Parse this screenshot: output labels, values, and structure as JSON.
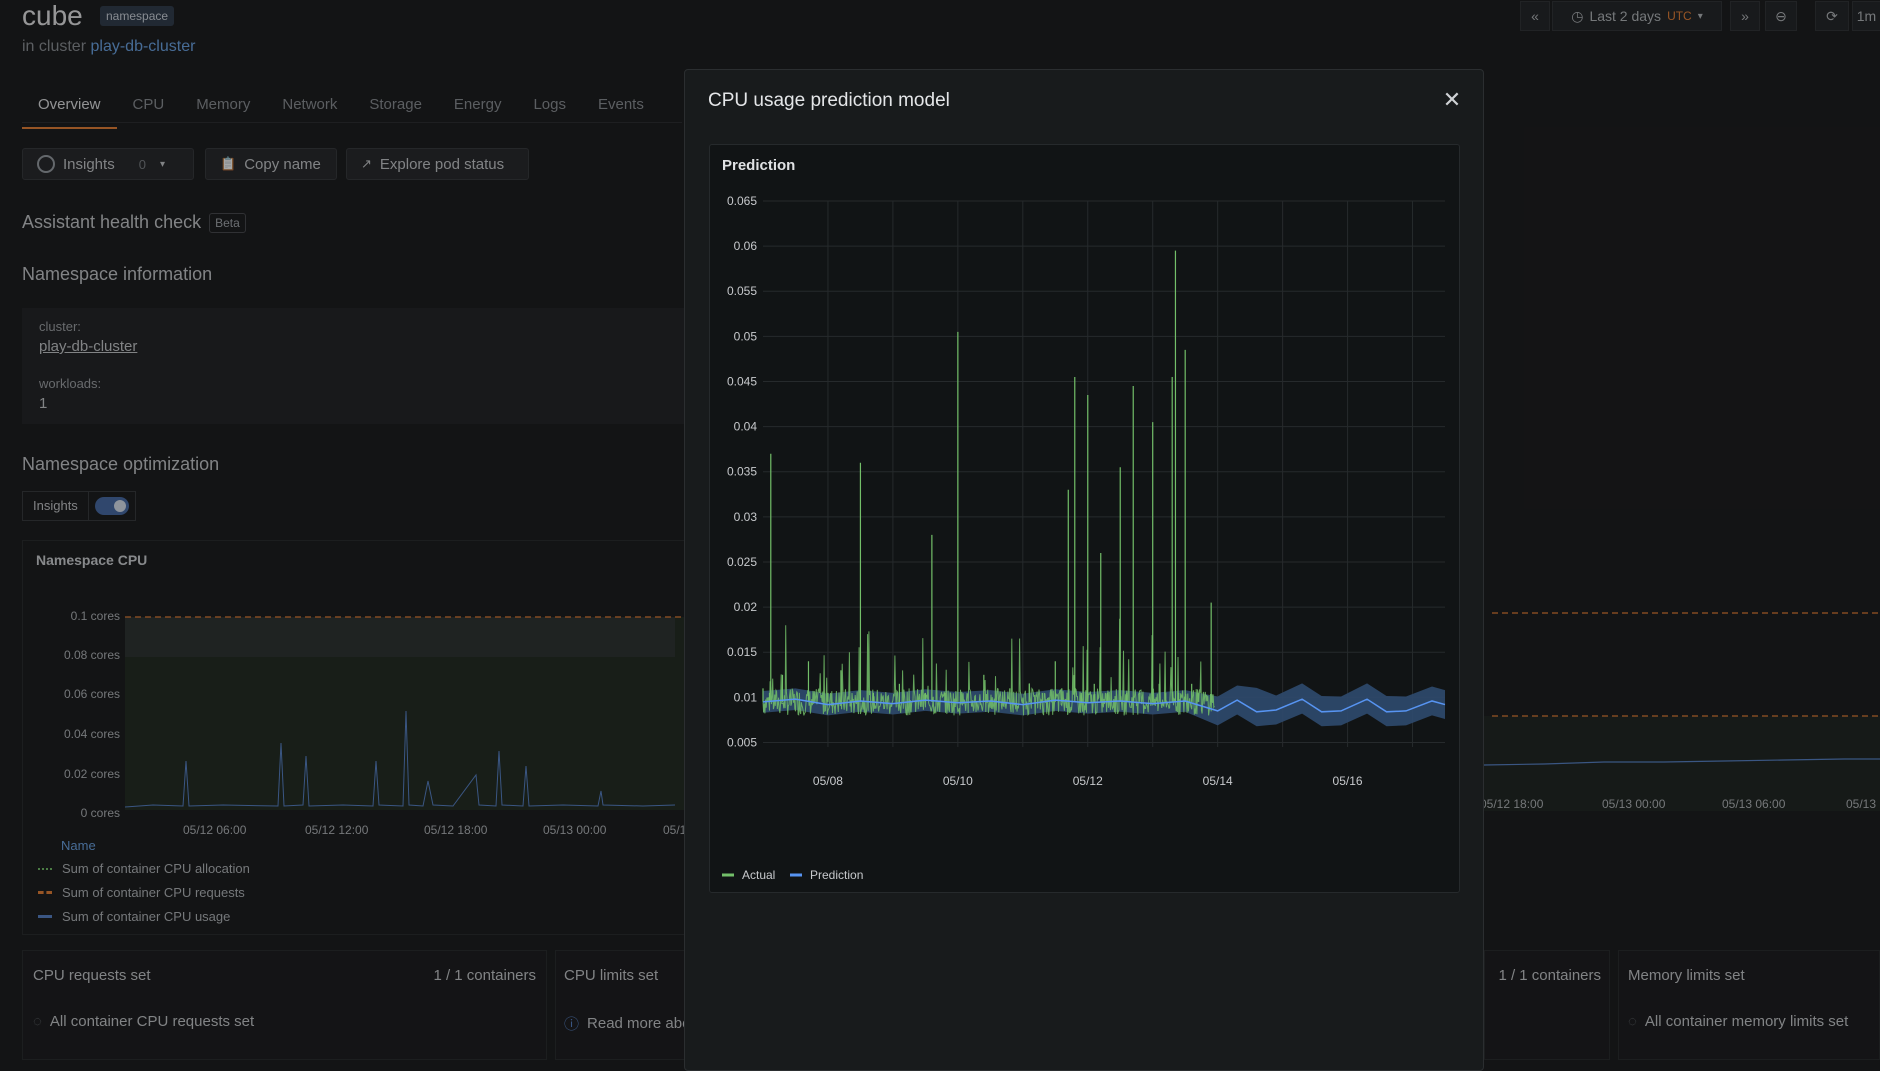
{
  "header": {
    "title": "cube",
    "badge": "namespace",
    "in_cluster_prefix": "in cluster",
    "cluster_link": "play-db-cluster",
    "time_range": "Last 2 days",
    "timezone": "UTC",
    "refresh_partial": "1m"
  },
  "tabs": [
    "Overview",
    "CPU",
    "Memory",
    "Network",
    "Storage",
    "Energy",
    "Logs",
    "Events"
  ],
  "actions": {
    "insights_label": "Insights",
    "insights_count": "0",
    "copy_name": "Copy name",
    "explore_pod": "Explore pod status"
  },
  "health": {
    "title": "Assistant health check",
    "badge": "Beta"
  },
  "ns_info": {
    "title": "Namespace information",
    "cluster_label": "cluster:",
    "cluster_value": "play-db-cluster",
    "workloads_label": "workloads:",
    "workloads_value": "1"
  },
  "optimization": {
    "title": "Namespace optimization",
    "insights_label": "Insights"
  },
  "ns_cpu": {
    "title": "Namespace CPU",
    "y_ticks": [
      "0.1 cores",
      "0.08 cores",
      "0.06 cores",
      "0.04 cores",
      "0.02 cores",
      "0 cores"
    ],
    "x_ticks": [
      "05/12 06:00",
      "05/12 12:00",
      "05/12 18:00",
      "05/13 00:00",
      "05/1"
    ],
    "x_ticks_right": [
      "05/12 18:00",
      "05/13 00:00",
      "05/13 06:00",
      "05/13"
    ],
    "legend_header": "Name",
    "legend": [
      "Sum of container CPU allocation",
      "Sum of container CPU requests",
      "Sum of container CPU usage"
    ]
  },
  "cards": {
    "cpu_requests": {
      "title": "CPU requests set",
      "count": "1 / 1 containers",
      "status": "All container CPU requests set"
    },
    "cpu_limits": {
      "title": "CPU limits set",
      "status": "Read more abo"
    },
    "memory_requests": {
      "count": "1 / 1 containers"
    },
    "memory_limits": {
      "title": "Memory limits set",
      "status": "All container memory limits set"
    }
  },
  "modal": {
    "title": "CPU usage prediction model",
    "panel_title": "Prediction",
    "legend_actual": "Actual",
    "legend_prediction": "Prediction"
  },
  "colors": {
    "actual": "#73bf69",
    "prediction": "#5794f2",
    "band": "#2f4a6e",
    "accent": "#e8833a",
    "link": "#6ea6e6"
  },
  "chart_data": {
    "type": "line",
    "title": "Prediction",
    "xlabel": "",
    "ylabel": "",
    "y_ticks": [
      0.005,
      0.01,
      0.015,
      0.02,
      0.025,
      0.03,
      0.035,
      0.04,
      0.045,
      0.05,
      0.055,
      0.06,
      0.065
    ],
    "ylim": [
      0.0045,
      0.065
    ],
    "x_ticks": [
      "05/08",
      "05/10",
      "05/12",
      "05/14",
      "05/16"
    ],
    "xlim_days": [
      7.0,
      17.5
    ],
    "grid": true,
    "legend_position": "bottom-left",
    "series": [
      {
        "name": "Actual",
        "x_days": [
          7.0,
          7.1,
          7.12,
          7.3,
          7.5,
          7.7,
          7.8,
          8.0,
          8.2,
          8.4,
          8.5,
          8.7,
          8.9,
          9.1,
          9.3,
          9.5,
          9.6,
          9.7,
          9.8,
          10.0,
          10.2,
          10.4,
          10.6,
          10.8,
          11.0,
          11.1,
          11.2,
          11.3,
          11.4,
          11.5,
          11.6,
          11.7,
          11.8,
          11.9,
          12.0,
          12.1,
          12.2,
          12.3,
          12.4,
          12.5,
          12.6,
          12.7,
          12.8,
          12.9,
          13.0,
          13.1,
          13.2,
          13.3,
          13.35,
          13.4,
          13.5,
          13.6,
          13.7,
          13.8,
          13.9,
          13.95
        ],
        "values": [
          0.011,
          0.0105,
          0.037,
          0.0125,
          0.0095,
          0.014,
          0.0095,
          0.0105,
          0.013,
          0.0095,
          0.036,
          0.0105,
          0.0095,
          0.0115,
          0.0095,
          0.0105,
          0.028,
          0.0095,
          0.0105,
          0.0505,
          0.0095,
          0.0125,
          0.0095,
          0.011,
          0.0095,
          0.0115,
          0.0095,
          0.0105,
          0.01,
          0.014,
          0.011,
          0.033,
          0.0455,
          0.0105,
          0.0435,
          0.0115,
          0.026,
          0.0105,
          0.0095,
          0.0355,
          0.0105,
          0.0445,
          0.0105,
          0.0095,
          0.0405,
          0.0115,
          0.0105,
          0.0455,
          0.0595,
          0.0105,
          0.0485,
          0.0115,
          0.0105,
          0.0095,
          0.0205,
          0.0095
        ]
      },
      {
        "name": "Prediction",
        "x_days": [
          7.0,
          7.5,
          8.0,
          8.5,
          9.0,
          9.5,
          10.0,
          10.5,
          11.0,
          11.5,
          12.0,
          12.5,
          13.0,
          13.5,
          14.0,
          14.3,
          14.6,
          14.9,
          15.3,
          15.6,
          15.9,
          16.3,
          16.6,
          16.9,
          17.3,
          17.5
        ],
        "values": [
          0.0095,
          0.0098,
          0.0092,
          0.0096,
          0.0093,
          0.0097,
          0.0094,
          0.0096,
          0.0092,
          0.0097,
          0.0094,
          0.0096,
          0.0093,
          0.0096,
          0.0085,
          0.0097,
          0.0084,
          0.0086,
          0.0098,
          0.0084,
          0.0085,
          0.0098,
          0.0084,
          0.0085,
          0.0096,
          0.0092
        ]
      }
    ]
  }
}
